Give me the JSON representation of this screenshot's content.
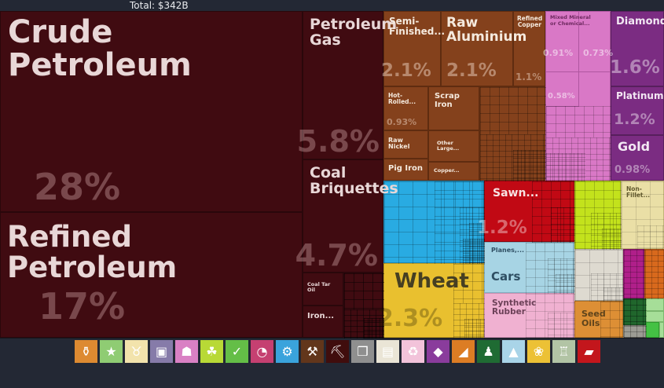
{
  "header": {
    "total_label": "Total: $342B"
  },
  "treemap": {
    "cells": {
      "crude_petroleum": {
        "label": "Crude Petroleum",
        "pct": "28%"
      },
      "refined_petroleum": {
        "label": "Refined Petroleum",
        "pct": "17%"
      },
      "petroleum_gas": {
        "label": "Petroleum Gas",
        "pct": "5.8%"
      },
      "coal_briquettes": {
        "label": "Coal Briquettes",
        "pct": "4.7%"
      },
      "coal_tar_oil": {
        "label": "Coal Tar Oil"
      },
      "iron": {
        "label": "Iron..."
      },
      "semi_finished": {
        "label": "Semi-Finished...",
        "pct": "2.1%"
      },
      "raw_aluminium": {
        "label": "Raw Aluminium",
        "pct": "2.1%"
      },
      "refined_copper": {
        "label": "Refined Copper",
        "pct": "1.1%"
      },
      "hot_rolled": {
        "label": "Hot-Rolled...",
        "pct": "0.93%"
      },
      "scrap_iron": {
        "label": "Scrap Iron"
      },
      "raw_nickel": {
        "label": "Raw Nickel"
      },
      "other_large": {
        "label": "Other Large..."
      },
      "pig_iron": {
        "label": "Pig Iron"
      },
      "copper": {
        "label": "Copper..."
      },
      "mixed_mineral": {
        "label": "Mixed Mineral or Chemical...",
        "pct1": "0.91%",
        "pct2": "0.73%",
        "pct3": "0.58%"
      },
      "diamonds": {
        "label": "Diamonds",
        "pct": "1.6%"
      },
      "platinum": {
        "label": "Platinum",
        "pct": "1.2%"
      },
      "gold": {
        "label": "Gold",
        "pct": "0.98%"
      },
      "wheat": {
        "label": "Wheat",
        "pct": "2.3%"
      },
      "sawn": {
        "label": "Sawn...",
        "pct": "1.2%"
      },
      "planes": {
        "label": "Planes,..."
      },
      "cars": {
        "label": "Cars"
      },
      "synthetic_rubber": {
        "label": "Synthetic Rubber"
      },
      "non_fillet": {
        "label": "Non- Fillet..."
      },
      "seed_oils": {
        "label": "Seed Oils"
      }
    },
    "palette": {
      "mineral_products": "#400b11",
      "metals": "#84411c",
      "mixed_minerals": "#d978c6",
      "precious_stones": "#7b2c82",
      "chemicals_blue": "#29abe2",
      "vegetable_yellow": "#e9c02f",
      "wood_red": "#c10914",
      "transport_lightblue": "#a7d4e4",
      "rubber_pink": "#f0b1d1",
      "lime_green": "#c3e21c",
      "fish_beige": "#eadfa6",
      "greige": "#dedad0",
      "magenta": "#b01f8a",
      "orange": "#d8691d",
      "seed_oil_orange": "#dd8f35"
    }
  },
  "chart_data": {
    "type": "treemap",
    "title": "Total: $342B",
    "items": [
      {
        "name": "Crude Petroleum",
        "share_pct": 28
      },
      {
        "name": "Refined Petroleum",
        "share_pct": 17
      },
      {
        "name": "Petroleum Gas",
        "share_pct": 5.8
      },
      {
        "name": "Coal Briquettes",
        "share_pct": 4.7
      },
      {
        "name": "Coal Tar Oil",
        "share_pct": null
      },
      {
        "name": "Iron...",
        "share_pct": null
      },
      {
        "name": "Semi-Finished...",
        "share_pct": 2.1
      },
      {
        "name": "Raw Aluminium",
        "share_pct": 2.1
      },
      {
        "name": "Refined Copper",
        "share_pct": 1.1
      },
      {
        "name": "Hot-Rolled...",
        "share_pct": 0.93
      },
      {
        "name": "Scrap Iron",
        "share_pct": null
      },
      {
        "name": "Raw Nickel",
        "share_pct": null
      },
      {
        "name": "Other Large...",
        "share_pct": null
      },
      {
        "name": "Pig Iron",
        "share_pct": null
      },
      {
        "name": "Copper...",
        "share_pct": null
      },
      {
        "name": "Mixed Mineral or Chemical... (cell 1)",
        "share_pct": 0.91
      },
      {
        "name": "Mixed Mineral or Chemical... (cell 2)",
        "share_pct": 0.73
      },
      {
        "name": "Mixed Mineral or Chemical... (cell 3)",
        "share_pct": 0.58
      },
      {
        "name": "Diamonds",
        "share_pct": 1.6
      },
      {
        "name": "Platinum",
        "share_pct": 1.2
      },
      {
        "name": "Gold",
        "share_pct": 0.98
      },
      {
        "name": "Wheat",
        "share_pct": 2.3
      },
      {
        "name": "Sawn...",
        "share_pct": 1.2
      },
      {
        "name": "Planes,...",
        "share_pct": null
      },
      {
        "name": "Cars",
        "share_pct": null
      },
      {
        "name": "Synthetic Rubber",
        "share_pct": null
      },
      {
        "name": "Non- Fillet...",
        "share_pct": null
      },
      {
        "name": "Seed Oils",
        "share_pct": null
      }
    ]
  },
  "legend": {
    "icons": [
      {
        "name": "bottle-icon",
        "glyph": "⚱",
        "color": "#dd8a31"
      },
      {
        "name": "star-icon",
        "glyph": "★",
        "color": "#8fcc73"
      },
      {
        "name": "cow-icon",
        "glyph": "♉",
        "color": "#f2e3ac"
      },
      {
        "name": "frame-icon",
        "glyph": "▣",
        "color": "#867ba9"
      },
      {
        "name": "bag-icon",
        "glyph": "☗",
        "color": "#d980c4"
      },
      {
        "name": "wheat-icon",
        "glyph": "☘",
        "color": "#b8d936"
      },
      {
        "name": "shoe-icon",
        "glyph": "✓",
        "color": "#64be47"
      },
      {
        "name": "gauge-icon",
        "glyph": "◔",
        "color": "#c54071"
      },
      {
        "name": "gears-icon",
        "glyph": "⚙",
        "color": "#3aa3dc"
      },
      {
        "name": "anvil-icon",
        "glyph": "⚒",
        "color": "#62361b"
      },
      {
        "name": "pickaxe-icon",
        "glyph": "⛏",
        "color": "#400d0d"
      },
      {
        "name": "box-icon",
        "glyph": "❒",
        "color": "#8f8f8f"
      },
      {
        "name": "paper-icon",
        "glyph": "▤",
        "color": "#eae5d6"
      },
      {
        "name": "recycle-icon",
        "glyph": "♻",
        "color": "#f2c3da"
      },
      {
        "name": "diamond-icon",
        "glyph": "◆",
        "color": "#8a3c9c"
      },
      {
        "name": "rockslide-icon",
        "glyph": "◢",
        "color": "#dc7d24"
      },
      {
        "name": "tshirt-icon",
        "glyph": "♟",
        "color": "#1f6b33"
      },
      {
        "name": "road-icon",
        "glyph": "▲",
        "color": "#a9d4e8"
      },
      {
        "name": "tomato-icon",
        "glyph": "❀",
        "color": "#ecc135"
      },
      {
        "name": "building-icon",
        "glyph": "♖",
        "color": "#b2c4a5"
      },
      {
        "name": "plank-icon",
        "glyph": "▰",
        "color": "#c3161c"
      }
    ]
  }
}
